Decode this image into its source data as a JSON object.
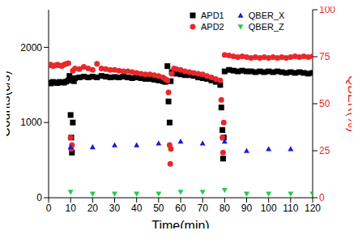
{
  "chart_data": {
    "type": "scatter",
    "x_label": "Time(min)",
    "y_label": "Counts(c/s)",
    "y2_label": "QBER(%)",
    "xlim": [
      0,
      120
    ],
    "xticks": [
      0,
      10,
      20,
      30,
      40,
      50,
      60,
      70,
      80,
      90,
      100,
      110,
      120
    ],
    "ylim": [
      0,
      2500
    ],
    "yticks": [
      0,
      1000,
      2000
    ],
    "y2lim": [
      0,
      100
    ],
    "y2ticks": [
      0,
      25,
      50,
      75,
      100
    ],
    "legend": "top",
    "series": [
      {
        "name": "APD1",
        "color": "#000000",
        "marker": "square",
        "x": [
          0,
          1,
          2,
          3,
          4,
          5,
          6,
          7,
          8,
          9,
          9.5,
          10,
          10.3,
          10.6,
          11,
          11.5,
          12,
          14,
          16,
          18,
          20,
          22,
          24,
          26,
          28,
          30,
          32,
          34,
          36,
          38,
          40,
          42,
          44,
          46,
          48,
          50,
          52,
          53,
          54,
          54.5,
          55,
          55.5,
          56,
          58,
          60,
          62,
          64,
          66,
          68,
          70,
          72,
          74,
          76,
          78,
          78.5,
          79,
          79.3,
          79.6,
          80,
          82,
          84,
          86,
          88,
          90,
          92,
          94,
          96,
          98,
          100,
          102,
          104,
          106,
          108,
          110,
          112,
          114,
          116,
          118,
          120
        ],
        "values": [
          1530,
          1520,
          1540,
          1530,
          1525,
          1540,
          1535,
          1530,
          1545,
          1560,
          1620,
          1100,
          800,
          600,
          1000,
          1550,
          1590,
          1600,
          1610,
          1600,
          1610,
          1600,
          1620,
          1610,
          1600,
          1605,
          1600,
          1610,
          1600,
          1590,
          1600,
          1590,
          1580,
          1580,
          1570,
          1560,
          1550,
          1540,
          1750,
          1280,
          1000,
          1550,
          1670,
          1650,
          1640,
          1630,
          1630,
          1620,
          1600,
          1590,
          1580,
          1560,
          1540,
          1500,
          1200,
          900,
          520,
          800,
          1680,
          1700,
          1690,
          1680,
          1690,
          1680,
          1680,
          1670,
          1680,
          1670,
          1680,
          1670,
          1680,
          1670,
          1660,
          1670,
          1660,
          1670,
          1660,
          1650,
          1660
        ]
      },
      {
        "name": "APD2",
        "color": "#e8282a",
        "marker": "circle",
        "x": [
          0,
          1,
          2,
          3,
          4,
          5,
          6,
          7,
          8,
          9,
          10,
          10.3,
          10.6,
          11,
          12,
          14,
          16,
          18,
          20,
          22,
          24,
          26,
          28,
          30,
          32,
          34,
          36,
          38,
          40,
          42,
          44,
          46,
          48,
          50,
          52,
          53,
          54,
          54.5,
          55,
          55.3,
          55.6,
          56,
          57,
          58,
          60,
          62,
          64,
          66,
          68,
          70,
          72,
          74,
          76,
          78,
          78.5,
          79,
          79.3,
          79.6,
          80,
          82,
          84,
          86,
          88,
          90,
          92,
          94,
          96,
          98,
          100,
          102,
          104,
          106,
          108,
          110,
          112,
          114,
          116,
          118,
          120
        ],
        "values": [
          1760,
          1770,
          1750,
          1760,
          1770,
          1760,
          1750,
          1770,
          1780,
          1790,
          800,
          650,
          700,
          1690,
          1720,
          1710,
          1740,
          1720,
          1700,
          1780,
          1720,
          1710,
          1700,
          1700,
          1690,
          1680,
          1680,
          1670,
          1660,
          1650,
          1640,
          1640,
          1630,
          1620,
          1600,
          1580,
          1560,
          1400,
          700,
          450,
          650,
          1650,
          1720,
          1710,
          1700,
          1680,
          1670,
          1660,
          1650,
          1640,
          1620,
          1600,
          1580,
          1560,
          1300,
          800,
          600,
          1000,
          1900,
          1890,
          1880,
          1870,
          1880,
          1870,
          1860,
          1870,
          1860,
          1870,
          1860,
          1870,
          1860,
          1870,
          1860,
          1870,
          1880,
          1870,
          1880,
          1870,
          1880
        ]
      },
      {
        "name": "QBER_X",
        "color": "#1c1cd6",
        "marker": "triangle",
        "axis": "y2",
        "x": [
          10,
          20,
          30,
          40,
          50,
          60,
          70,
          80,
          90,
          100,
          110
        ],
        "values": [
          27,
          27,
          28,
          28,
          29,
          30,
          29,
          30,
          25,
          26,
          26
        ]
      },
      {
        "name": "QBER_Z",
        "color": "#22cc44",
        "marker": "triangle-down",
        "axis": "y2",
        "x": [
          10,
          20,
          30,
          40,
          50,
          60,
          70,
          80,
          90,
          100,
          110,
          120
        ],
        "values": [
          3,
          2,
          2,
          2,
          2,
          3,
          3,
          4,
          2,
          2,
          2,
          2
        ]
      }
    ]
  }
}
